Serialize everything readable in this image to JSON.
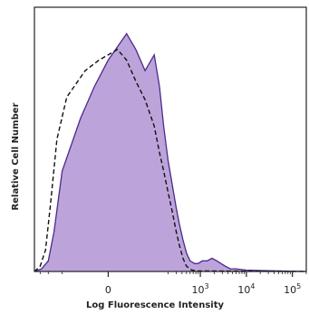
{
  "chart_data": {
    "type": "area",
    "title": "",
    "xlabel": "Log Fluorescence Intensity",
    "ylabel": "Relative Cell Number",
    "x_scale": "biexponential",
    "xlim": [
      -400,
      200000
    ],
    "ylim": [
      0,
      100
    ],
    "x_ticks": [
      {
        "value": 0,
        "label": "0"
      },
      {
        "value": 1000,
        "label": "10",
        "exp": "3"
      },
      {
        "value": 10000,
        "label": "10",
        "exp": "4"
      },
      {
        "value": 100000,
        "label": "10",
        "exp": "5"
      }
    ],
    "grid": false,
    "legend": "none",
    "series": [
      {
        "style": "filled-solid",
        "fill_color": "#b59ad6",
        "line_color": "#4b2a8a",
        "x": [
          -400,
          -280,
          -200,
          -150,
          -100,
          -60,
          -30,
          0,
          20,
          40,
          60,
          80,
          100,
          130,
          160,
          200,
          250,
          300,
          350,
          420,
          500,
          600,
          750,
          900,
          1100,
          1400,
          1800,
          2300,
          2800,
          3500,
          4500,
          6000,
          10000,
          30000,
          200000
        ],
        "y": [
          0,
          1,
          4,
          15,
          38,
          58,
          70,
          80,
          85,
          90,
          84,
          76,
          82,
          70,
          55,
          42,
          32,
          24,
          18,
          12,
          7,
          4,
          3,
          3,
          4,
          4,
          5,
          4,
          3,
          2,
          1,
          1,
          0.5,
          0.3,
          0
        ]
      },
      {
        "style": "dashed-outline",
        "line_color": "#111111",
        "x": [
          -400,
          -300,
          -230,
          -180,
          -130,
          -90,
          -50,
          -20,
          0,
          20,
          40,
          60,
          80,
          100,
          130,
          160,
          200,
          250,
          300,
          350,
          420,
          500,
          650,
          900,
          200000
        ],
        "y": [
          0,
          2,
          8,
          25,
          50,
          66,
          76,
          80,
          82,
          84,
          80,
          72,
          65,
          55,
          45,
          38,
          30,
          22,
          15,
          10,
          5,
          2,
          0.5,
          0.2,
          0
        ]
      }
    ]
  }
}
